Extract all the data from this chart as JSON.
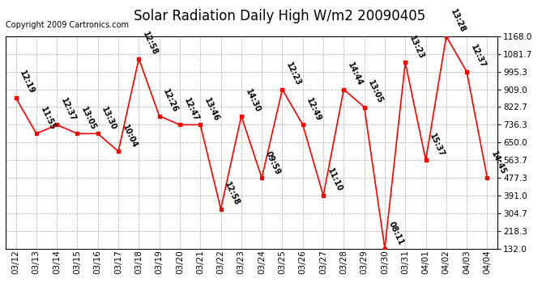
{
  "title": "Solar Radiation Daily High W/m2 20090405",
  "copyright": "Copyright 2009 Cartronics.com",
  "dates": [
    "03/12",
    "03/13",
    "03/14",
    "03/15",
    "03/16",
    "03/17",
    "03/18",
    "03/19",
    "03/20",
    "03/21",
    "03/22",
    "03/23",
    "03/24",
    "03/25",
    "03/26",
    "03/27",
    "03/28",
    "03/29",
    "03/30",
    "03/31",
    "04/01",
    "04/02",
    "04/03",
    "04/04"
  ],
  "values": [
    868,
    693,
    736,
    693,
    693,
    606,
    1059,
    779,
    736,
    736,
    325,
    779,
    476,
    909,
    736,
    390,
    909,
    822,
    132,
    1040,
    563,
    1168,
    995,
    476
  ],
  "labels": [
    "12:19",
    "11:55",
    "12:37",
    "13:05",
    "13:30",
    "10:04",
    "12:58",
    "12:26",
    "12:47",
    "13:46",
    "12:58",
    "14:30",
    "09:59",
    "12:23",
    "12:49",
    "11:10",
    "14:44",
    "13:05",
    "08:11",
    "13:23",
    "15:37",
    "13:28",
    "12:37",
    "14:45"
  ],
  "ymin": 132.0,
  "ymax": 1168.0,
  "yticks": [
    132.0,
    218.3,
    304.7,
    391.0,
    477.3,
    563.7,
    650.0,
    736.3,
    822.7,
    909.0,
    995.3,
    1081.7,
    1168.0
  ],
  "line_color": "#ff0000",
  "marker_color": "#ff0000",
  "bg_color": "#ffffff",
  "grid_color": "#aaaaaa",
  "title_fontsize": 12,
  "label_fontsize": 7,
  "copyright_fontsize": 7,
  "tick_fontsize": 7.5
}
